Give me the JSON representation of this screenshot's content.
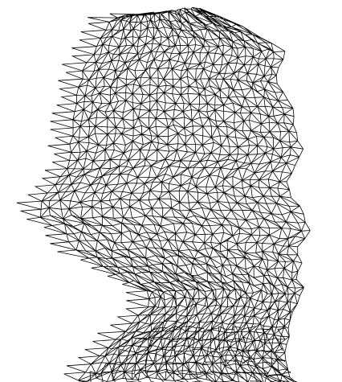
{
  "scene": {
    "background_color": "#ffffff",
    "wire_color": "#000000",
    "subject": "wireframe-head-profile",
    "render_style": "triangulated-wireframe"
  }
}
